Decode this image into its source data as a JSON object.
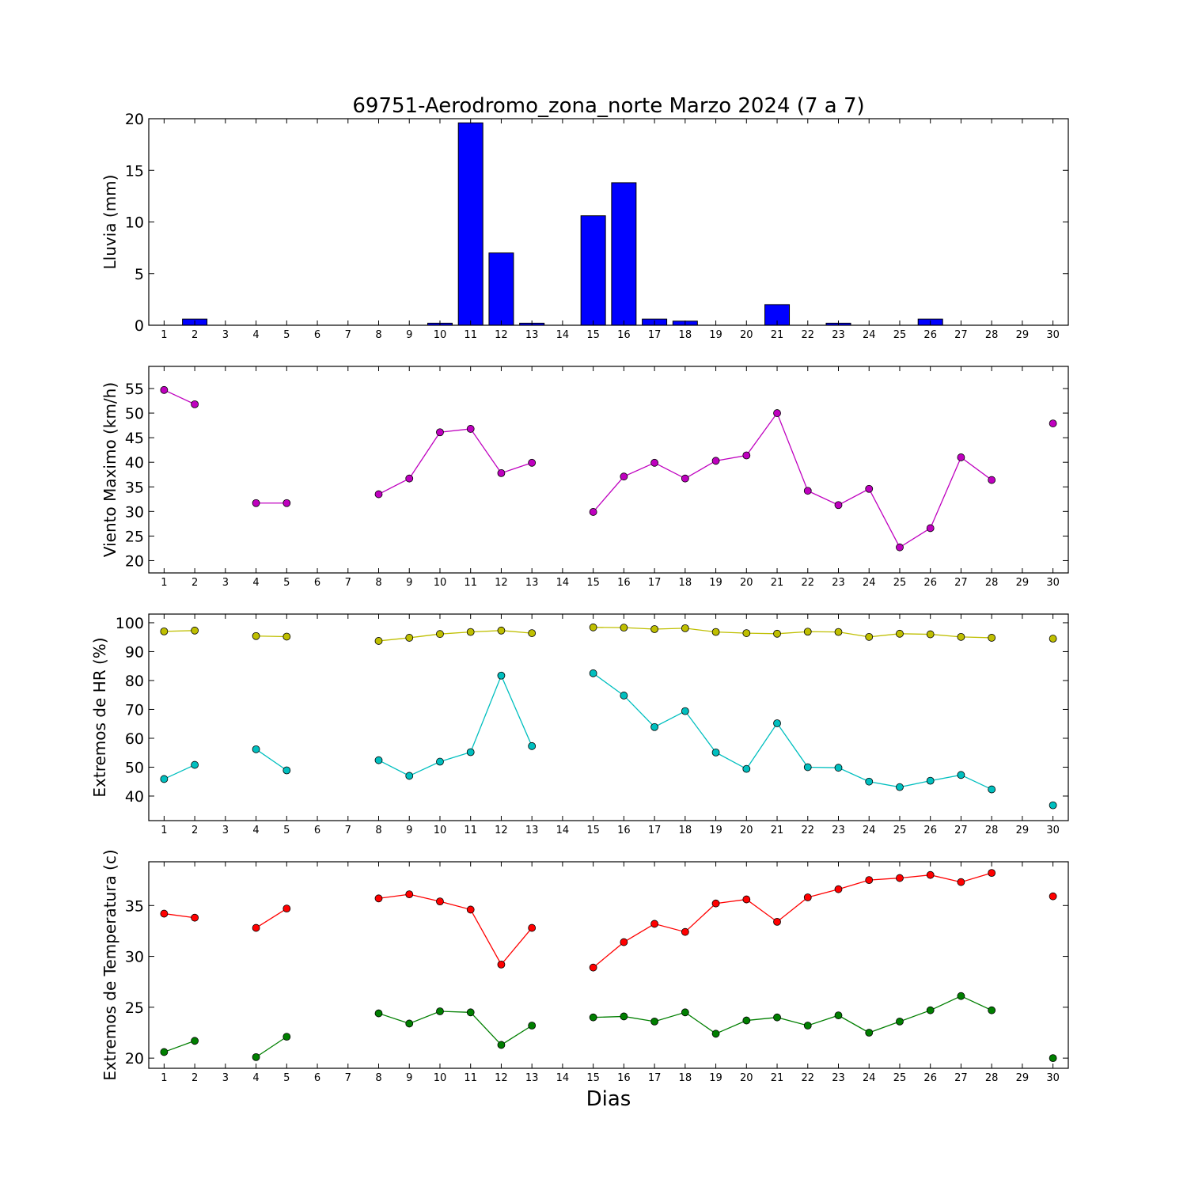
{
  "title": "69751-Aerodromo_zona_norte Marzo 2024  (7 a 7)",
  "xlabel": "Dias",
  "chart_data": [
    {
      "type": "bar",
      "ylabel": "Lluvia (mm)",
      "x": [
        1,
        2,
        3,
        4,
        5,
        6,
        7,
        8,
        9,
        10,
        11,
        12,
        13,
        14,
        15,
        16,
        17,
        18,
        19,
        20,
        21,
        22,
        23,
        24,
        25,
        26,
        27,
        28,
        29,
        30
      ],
      "ylim": [
        0,
        20
      ],
      "yticks": [
        0,
        5,
        10,
        15,
        20
      ],
      "series": [
        {
          "color": "#0000ff",
          "values": [
            0,
            0.6,
            0,
            0,
            0,
            0,
            0,
            0,
            0,
            0.2,
            19.6,
            7.0,
            0.2,
            0,
            10.6,
            13.8,
            0.6,
            0.4,
            0,
            0,
            2.0,
            0,
            0.2,
            0,
            0,
            0.6,
            0,
            0,
            0,
            0
          ]
        }
      ]
    },
    {
      "type": "line",
      "ylabel": "Viento Maximo (km/h)",
      "x": [
        1,
        2,
        3,
        4,
        5,
        6,
        7,
        8,
        9,
        10,
        11,
        12,
        13,
        14,
        15,
        16,
        17,
        18,
        19,
        20,
        21,
        22,
        23,
        24,
        25,
        26,
        27,
        28,
        29,
        30
      ],
      "ylim": [
        17.5,
        59.5
      ],
      "yticks": [
        20,
        25,
        30,
        35,
        40,
        45,
        50,
        55
      ],
      "series": [
        {
          "color": "#bf00bf",
          "values": [
            54.7,
            51.8,
            null,
            31.7,
            31.7,
            null,
            null,
            33.5,
            36.7,
            46.1,
            46.8,
            37.8,
            39.9,
            null,
            29.9,
            37.1,
            39.9,
            36.7,
            40.3,
            41.4,
            50.0,
            34.2,
            31.3,
            34.6,
            22.7,
            26.6,
            41.0,
            36.4,
            null,
            47.9
          ]
        }
      ]
    },
    {
      "type": "line",
      "ylabel": "Extremos de HR (%)",
      "x": [
        1,
        2,
        3,
        4,
        5,
        6,
        7,
        8,
        9,
        10,
        11,
        12,
        13,
        14,
        15,
        16,
        17,
        18,
        19,
        20,
        21,
        22,
        23,
        24,
        25,
        26,
        27,
        28,
        29,
        30
      ],
      "ylim": [
        31.5,
        103
      ],
      "yticks": [
        40,
        50,
        60,
        70,
        80,
        90,
        100
      ],
      "series": [
        {
          "color": "#bfbf00",
          "values": [
            97,
            97.3,
            null,
            95.4,
            95.2,
            null,
            null,
            93.7,
            94.8,
            96.1,
            96.8,
            97.3,
            96.4,
            null,
            98.4,
            98.3,
            97.8,
            98.1,
            96.8,
            96.4,
            96.2,
            96.9,
            96.8,
            95.1,
            96.2,
            96.0,
            95.1,
            94.8,
            null,
            94.5
          ]
        },
        {
          "color": "#00bfbf",
          "values": [
            45.9,
            50.8,
            null,
            56.2,
            48.9,
            null,
            null,
            52.4,
            47.0,
            51.9,
            55.2,
            81.7,
            57.3,
            null,
            82.5,
            74.8,
            63.9,
            69.4,
            55.1,
            49.4,
            65.2,
            50.0,
            49.8,
            45.0,
            43.1,
            45.3,
            47.3,
            42.3,
            null,
            36.8
          ]
        }
      ]
    },
    {
      "type": "line",
      "ylabel": "Extremos de Temperatura (c)",
      "x": [
        1,
        2,
        3,
        4,
        5,
        6,
        7,
        8,
        9,
        10,
        11,
        12,
        13,
        14,
        15,
        16,
        17,
        18,
        19,
        20,
        21,
        22,
        23,
        24,
        25,
        26,
        27,
        28,
        29,
        30
      ],
      "ylim": [
        19,
        39.3
      ],
      "yticks": [
        20,
        25,
        30,
        35
      ],
      "series": [
        {
          "color": "#ff0000",
          "values": [
            34.2,
            33.8,
            null,
            32.8,
            34.7,
            null,
            null,
            35.7,
            36.1,
            35.4,
            34.6,
            29.2,
            32.8,
            null,
            28.9,
            31.4,
            33.2,
            32.4,
            35.2,
            35.6,
            33.4,
            35.8,
            36.6,
            37.5,
            37.7,
            38.0,
            37.3,
            38.2,
            null,
            35.9
          ]
        },
        {
          "color": "#007f00",
          "values": [
            20.6,
            21.7,
            null,
            20.1,
            22.1,
            null,
            null,
            24.4,
            23.4,
            24.6,
            24.5,
            21.3,
            23.2,
            null,
            24.0,
            24.1,
            23.6,
            24.5,
            22.4,
            23.7,
            24.0,
            23.2,
            24.2,
            22.5,
            23.6,
            24.7,
            26.1,
            24.7,
            null,
            20.0
          ]
        }
      ]
    }
  ]
}
